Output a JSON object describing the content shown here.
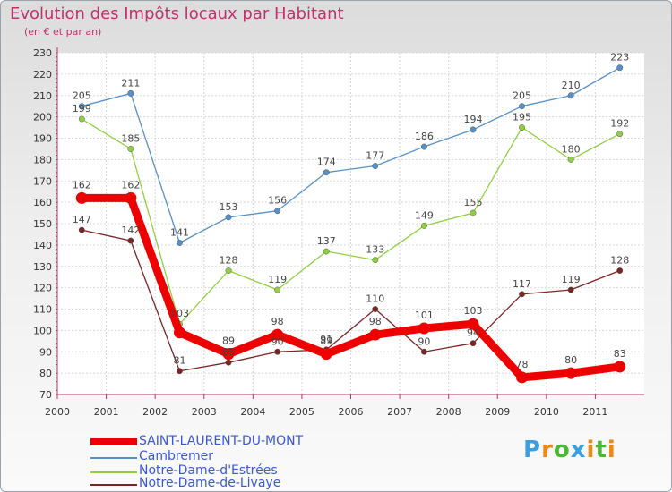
{
  "title": "Evolution des Impôts locaux par Habitant",
  "subtitle": "(en € et par an)",
  "brand": {
    "letters": [
      "P",
      "r",
      "o",
      "x",
      "i",
      "t",
      "i"
    ],
    "colors": [
      "#3aa0e0",
      "#e8891a",
      "#4bb83a",
      "#3aa0e0",
      "#e8891a",
      "#4bb83a",
      "#e8891a"
    ]
  },
  "chart_data": {
    "type": "line",
    "title": "Evolution des Impôts locaux par Habitant",
    "subtitle": "(en € et par an)",
    "x": [
      "2000",
      "2001",
      "2002",
      "2003",
      "2004",
      "2005",
      "2006",
      "2007",
      "2008",
      "2009",
      "2010",
      "2011"
    ],
    "ylim": [
      70,
      230
    ],
    "yticks": [
      70,
      80,
      90,
      100,
      110,
      120,
      130,
      140,
      150,
      160,
      170,
      180,
      190,
      200,
      210,
      220,
      230
    ],
    "grid": true,
    "legend_position": "bottom-left",
    "series": [
      {
        "name": "SAINT-LAURENT-DU-MONT",
        "color": "#ee0000",
        "values": [
          162,
          162,
          99,
          89,
          98,
          89,
          98,
          101,
          103,
          78,
          80,
          83
        ],
        "labels": [
          "162",
          "162",
          "",
          "89",
          "98",
          "89",
          "98",
          "101",
          "103",
          "78",
          "80",
          "83"
        ]
      },
      {
        "name": "Cambremer",
        "color": "#5590c8",
        "values": [
          205,
          211,
          141,
          153,
          156,
          174,
          177,
          186,
          194,
          205,
          210,
          223
        ],
        "labels": [
          "205",
          "211",
          "141",
          "153",
          "156",
          "174",
          "177",
          "186",
          "194",
          "205",
          "210",
          "223"
        ]
      },
      {
        "name": "Notre-Dame-d'Estrées",
        "color": "#90d040",
        "values": [
          199,
          185,
          103,
          128,
          119,
          137,
          133,
          149,
          155,
          195,
          180,
          192
        ],
        "labels": [
          "199",
          "185",
          "103",
          "128",
          "119",
          "137",
          "133",
          "149",
          "155",
          "195",
          "180",
          "192"
        ]
      },
      {
        "name": "Notre-Dame-de-Livaye",
        "color": "#7a2424",
        "values": [
          147,
          142,
          81,
          85,
          90,
          91,
          110,
          90,
          94,
          117,
          119,
          128
        ],
        "labels": [
          "147",
          "142",
          "81",
          "85",
          "90",
          "91",
          "110",
          "90",
          "94",
          "117",
          "119",
          "128"
        ]
      }
    ]
  }
}
